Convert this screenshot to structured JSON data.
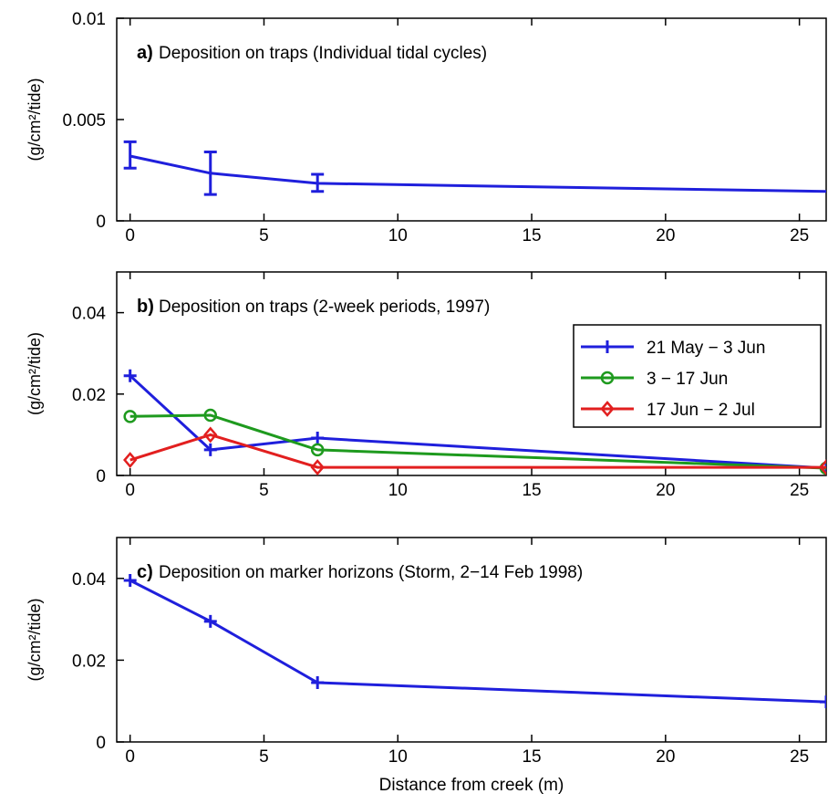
{
  "figure": {
    "xlabel": "Distance from creek (m)"
  },
  "chart_data": [
    {
      "type": "line",
      "panel_letter": "a)",
      "title": "Deposition on traps (Individual tidal cycles)",
      "ylabel": "(g/cm²/tide)",
      "xlim": [
        -0.5,
        26
      ],
      "ylim": [
        0,
        0.01
      ],
      "xticks": [
        "0",
        "5",
        "10",
        "15",
        "20",
        "25"
      ],
      "yticks": [
        "0",
        "0.005",
        "0.01"
      ],
      "series": [
        {
          "color": "#1f1fdc",
          "marker": "none",
          "x": [
            0,
            3,
            7,
            26
          ],
          "y": [
            0.0032,
            0.00235,
            0.00185,
            0.00145
          ],
          "err_low": [
            0.0026,
            0.0013,
            0.00145,
            null
          ],
          "err_high": [
            0.0039,
            0.0034,
            0.0023,
            null
          ]
        }
      ]
    },
    {
      "type": "line",
      "panel_letter": "b)",
      "title": "Deposition on traps (2-week periods, 1997)",
      "ylabel": "(g/cm²/tide)",
      "xlim": [
        -0.5,
        26
      ],
      "ylim": [
        0,
        0.05
      ],
      "xticks": [
        "0",
        "5",
        "10",
        "15",
        "20",
        "25"
      ],
      "yticks": [
        "0",
        "0.02",
        "0.04"
      ],
      "legend_position": "top-right",
      "series": [
        {
          "name": "21 May − 3 Jun",
          "color": "#1f1fdc",
          "marker": "plus",
          "x": [
            0,
            3,
            7,
            26
          ],
          "y": [
            0.0245,
            0.0063,
            0.0092,
            0.0018
          ]
        },
        {
          "name": "3 − 17 Jun",
          "color": "#1e9a1e",
          "marker": "circle",
          "x": [
            0,
            3,
            7,
            26
          ],
          "y": [
            0.0145,
            0.0148,
            0.0063,
            0.0018
          ]
        },
        {
          "name": "17 Jun − 2 Jul",
          "color": "#e21f1f",
          "marker": "diamond",
          "x": [
            0,
            3,
            7,
            26
          ],
          "y": [
            0.0038,
            0.01,
            0.002,
            0.002
          ]
        }
      ]
    },
    {
      "type": "line",
      "panel_letter": "c)",
      "title": "Deposition on marker horizons (Storm, 2−14 Feb 1998)",
      "ylabel": "(g/cm²/tide)",
      "xlim": [
        -0.5,
        26
      ],
      "ylim": [
        0,
        0.05
      ],
      "xticks": [
        "0",
        "5",
        "10",
        "15",
        "20",
        "25"
      ],
      "yticks": [
        "0",
        "0.02",
        "0.04"
      ],
      "series": [
        {
          "color": "#1f1fdc",
          "marker": "plus",
          "x": [
            0,
            3,
            7,
            26
          ],
          "y": [
            0.0395,
            0.0295,
            0.0145,
            0.0098
          ]
        }
      ]
    }
  ]
}
